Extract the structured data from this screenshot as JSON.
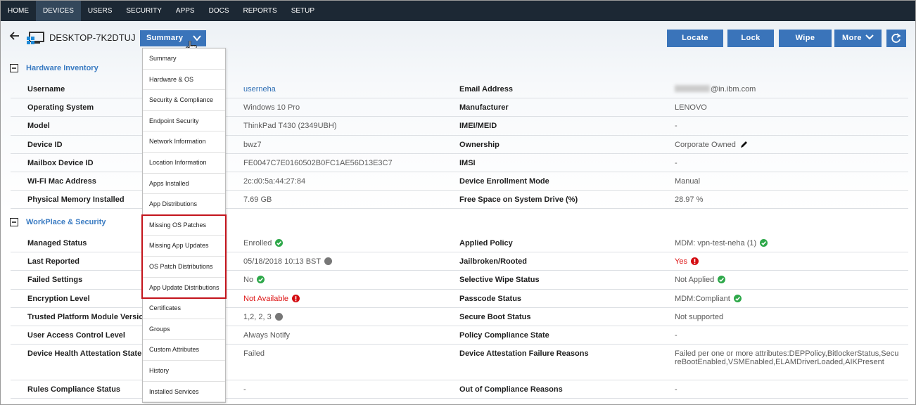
{
  "nav": {
    "items": [
      "HOME",
      "DEVICES",
      "USERS",
      "SECURITY",
      "APPS",
      "DOCS",
      "REPORTS",
      "SETUP"
    ],
    "active": "DEVICES"
  },
  "header": {
    "device_name": "DESKTOP-7K2DTUJ",
    "view": "Summary",
    "actions": [
      "Locate",
      "Lock",
      "Wipe",
      "More"
    ]
  },
  "menu": {
    "items": [
      {
        "label": "Summary"
      },
      {
        "label": "Hardware & OS"
      },
      {
        "label": "Security & Compliance"
      },
      {
        "label": "Endpoint Security"
      },
      {
        "label": "Network Information"
      },
      {
        "label": "Location Information"
      },
      {
        "label": "Apps Installed"
      },
      {
        "label": "App Distributions"
      },
      {
        "label": "Missing OS Patches",
        "highlight": true
      },
      {
        "label": "Missing App Updates",
        "highlight": true
      },
      {
        "label": "OS Patch Distributions",
        "highlight": true
      },
      {
        "label": "App Update Distributions",
        "highlight": true
      },
      {
        "label": "Certificates"
      },
      {
        "label": "Groups"
      },
      {
        "label": "Custom Attributes"
      },
      {
        "label": "History"
      },
      {
        "label": "Installed Services"
      }
    ]
  },
  "sections": [
    {
      "title": "Hardware Inventory",
      "rows": [
        {
          "label": "Username",
          "value": "userneha",
          "value_style": "link",
          "label2": "Email Address",
          "value2": "@in.ibm.com",
          "value2_redacted": true
        },
        {
          "label": "Operating System",
          "value": "Windows 10 Pro",
          "label2": "Manufacturer",
          "value2": "LENOVO"
        },
        {
          "label": "Model",
          "value": "ThinkPad T430 (2349UBH)",
          "label2": "IMEI/MEID",
          "value2": "-"
        },
        {
          "label": "Device ID",
          "value": "bwz7",
          "label2": "Ownership",
          "value2": "Corporate Owned",
          "value2_editable": true
        },
        {
          "label": "Mailbox Device ID",
          "value": "FE0047C7E0160502B0FC1AE56D13E3C7",
          "label2": "IMSI",
          "value2": "-"
        },
        {
          "label": "Wi-Fi Mac Address",
          "value": "2c:d0:5a:44:27:84",
          "label2": "Device Enrollment Mode",
          "value2": "Manual"
        },
        {
          "label": "Physical Memory Installed",
          "value": "7.69 GB",
          "label2": "Free Space on System Drive (%)",
          "value2": "28.97 %"
        }
      ]
    },
    {
      "title": "WorkPlace & Security",
      "rows": [
        {
          "label": "Managed Status",
          "value": "Enrolled",
          "value_status": "ok",
          "label2": "Applied Policy",
          "value2": "MDM: vpn-test-neha (1)",
          "value2_status": "ok"
        },
        {
          "label": "Last Reported",
          "value": "05/18/2018 10:13 BST",
          "value_status": "pending",
          "label2": "Jailbroken/Rooted",
          "value2": "Yes",
          "value2_style": "error",
          "value2_status": "error"
        },
        {
          "label": "Failed Settings",
          "value": "No",
          "value_status": "ok",
          "label2": "Selective Wipe Status",
          "value2": "Not Applied",
          "value2_status": "ok"
        },
        {
          "label": "Encryption Level",
          "value": "Not Available",
          "value_style": "error",
          "value_status": "error",
          "label2": "Passcode Status",
          "value2": "MDM:Compliant",
          "value2_status": "ok"
        },
        {
          "label": "Trusted Platform Module Version",
          "value": "1,2, 2, 3",
          "value_status": "pending",
          "label2": "Secure Boot Status",
          "value2": "Not supported"
        },
        {
          "label": "User Access Control Level",
          "value": "Always Notify",
          "label2": "Policy Compliance State",
          "value2": "-"
        },
        {
          "label": "Device Health Attestation State",
          "value": "Failed",
          "label2": "Device Attestation Failure Reasons",
          "value2": "Failed per one or more attributes:DEPPolicy,BitlockerStatus,SecureBootEnabled,VSMEnabled,ELAMDriverLoaded,AIKPresent"
        },
        {
          "label": "Rules Compliance Status",
          "value": "-",
          "label2": "Out of Compliance Reasons",
          "value2": "-"
        }
      ]
    }
  ]
}
